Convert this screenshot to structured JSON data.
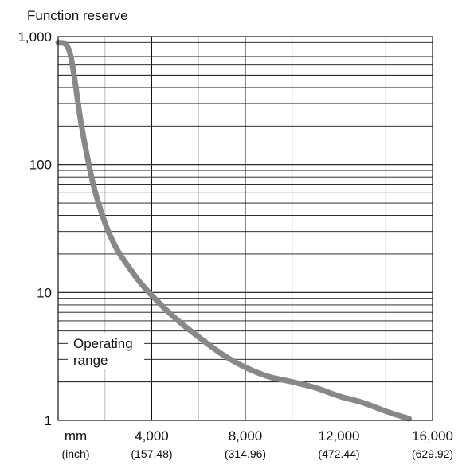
{
  "chart_data": {
    "type": "line",
    "title": "",
    "ylabel": "Function reserve",
    "xlabel": "",
    "x_unit_label": "mm",
    "x_sub_unit_label": "(inch)",
    "x_scale": "linear",
    "y_scale": "log",
    "xlim": [
      0,
      16000
    ],
    "ylim": [
      1,
      1000
    ],
    "x_ticks": [
      {
        "value": 4000,
        "label": "4,000",
        "sub": "(157.48)"
      },
      {
        "value": 8000,
        "label": "8,000",
        "sub": "(314.96)"
      },
      {
        "value": 12000,
        "label": "12,000",
        "sub": "(472.44)"
      },
      {
        "value": 16000,
        "label": "16,000",
        "sub": "(629.92)"
      }
    ],
    "y_ticks": [
      {
        "value": 1,
        "label": "1"
      },
      {
        "value": 10,
        "label": "10"
      },
      {
        "value": 100,
        "label": "100"
      },
      {
        "value": 1000,
        "label": "1,000"
      }
    ],
    "grid": true,
    "annotations": [
      {
        "text_lines": [
          "Operating",
          "range"
        ]
      }
    ],
    "series": [
      {
        "color": "#888888",
        "x": [
          0,
          500,
          1000,
          1500,
          2000,
          2500,
          3000,
          3500,
          4000,
          5000,
          6000,
          7000,
          8000,
          9000,
          10000,
          11000,
          12000,
          13000,
          14000,
          15000
        ],
        "y": [
          900,
          750,
          200,
          70,
          35,
          22,
          16,
          12,
          9.5,
          6.3,
          4.5,
          3.3,
          2.6,
          2.2,
          2.0,
          1.8,
          1.55,
          1.38,
          1.18,
          1.03
        ]
      }
    ]
  }
}
